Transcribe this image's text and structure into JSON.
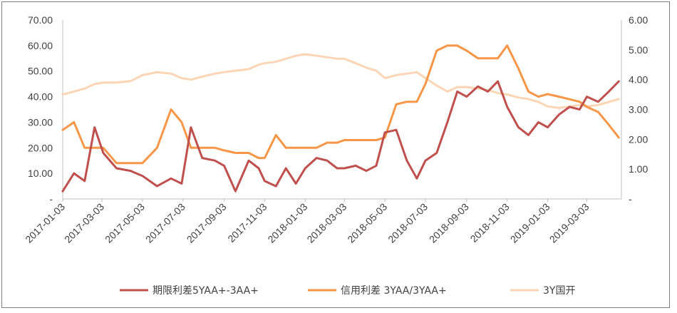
{
  "chart_data": {
    "type": "line",
    "x_ticks": [
      "2017-01-03",
      "2017-03-03",
      "2017-05-03",
      "2017-07-03",
      "2017-09-03",
      "2017-11-03",
      "2018-01-03",
      "2018-03-03",
      "2018-05-03",
      "2018-07-03",
      "2018-09-03",
      "2018-11-03",
      "2019-01-03",
      "2019-03-03"
    ],
    "y_left": {
      "ticks": [
        "-",
        "10.00",
        "20.00",
        "30.00",
        "40.00",
        "50.00",
        "60.00",
        "70.00"
      ],
      "ylim": [
        0,
        70
      ]
    },
    "y_right": {
      "ticks": [
        "-",
        "1.00",
        "2.00",
        "3.00",
        "4.00",
        "5.00",
        "6.00"
      ],
      "ylim": [
        0,
        6
      ]
    },
    "grid": false,
    "legend_position": "bottom",
    "series": [
      {
        "name": "期限利差5YAA+-3AA+",
        "axis": "left",
        "color": "#c0504d",
        "x": [
          "2017-01-03",
          "2017-01-20",
          "2017-02-05",
          "2017-02-20",
          "2017-03-05",
          "2017-03-25",
          "2017-04-15",
          "2017-05-03",
          "2017-05-25",
          "2017-06-15",
          "2017-07-01",
          "2017-07-15",
          "2017-08-01",
          "2017-08-20",
          "2017-09-03",
          "2017-09-20",
          "2017-10-10",
          "2017-10-25",
          "2017-11-03",
          "2017-11-20",
          "2017-12-05",
          "2017-12-20",
          "2018-01-03",
          "2018-01-20",
          "2018-02-05",
          "2018-02-20",
          "2018-03-03",
          "2018-03-20",
          "2018-04-05",
          "2018-04-20",
          "2018-05-03",
          "2018-05-20",
          "2018-06-05",
          "2018-06-20",
          "2018-07-03",
          "2018-07-20",
          "2018-08-05",
          "2018-08-20",
          "2018-09-03",
          "2018-09-20",
          "2018-10-05",
          "2018-10-20",
          "2018-11-03",
          "2018-11-20",
          "2018-12-05",
          "2018-12-20",
          "2019-01-03",
          "2019-01-20",
          "2019-02-05",
          "2019-02-20",
          "2019-03-03",
          "2019-03-20",
          "2019-04-05",
          "2019-04-20"
        ],
        "values": [
          3,
          10,
          7,
          28,
          18,
          12,
          11,
          9,
          5,
          8,
          6,
          28,
          16,
          15,
          13,
          3,
          15,
          12,
          7,
          5,
          12,
          6,
          12,
          16,
          15,
          12,
          12,
          13,
          11,
          13,
          26,
          27,
          15,
          8,
          15,
          18,
          30,
          42,
          40,
          44,
          42,
          46,
          36,
          28,
          25,
          30,
          28,
          33,
          36,
          35,
          40,
          38,
          42,
          46
        ]
      },
      {
        "name": "信用利差 3YAA/3YAA+",
        "axis": "left",
        "color": "#f79646",
        "x": [
          "2017-01-03",
          "2017-01-20",
          "2017-02-05",
          "2017-02-20",
          "2017-03-05",
          "2017-03-25",
          "2017-04-15",
          "2017-05-03",
          "2017-05-25",
          "2017-06-15",
          "2017-07-01",
          "2017-07-15",
          "2017-08-01",
          "2017-08-20",
          "2017-09-03",
          "2017-09-20",
          "2017-10-10",
          "2017-10-25",
          "2017-11-03",
          "2017-11-20",
          "2017-12-05",
          "2017-12-20",
          "2018-01-03",
          "2018-01-20",
          "2018-02-05",
          "2018-02-20",
          "2018-03-03",
          "2018-03-20",
          "2018-04-05",
          "2018-04-20",
          "2018-05-03",
          "2018-05-20",
          "2018-06-05",
          "2018-06-20",
          "2018-07-03",
          "2018-07-20",
          "2018-08-05",
          "2018-08-20",
          "2018-09-03",
          "2018-09-20",
          "2018-10-05",
          "2018-10-20",
          "2018-11-03",
          "2018-11-20",
          "2018-12-05",
          "2018-12-20",
          "2019-01-03",
          "2019-01-20",
          "2019-02-05",
          "2019-02-20",
          "2019-03-03",
          "2019-03-20",
          "2019-04-05",
          "2019-04-20"
        ],
        "values": [
          27,
          30,
          20,
          20,
          20,
          14,
          14,
          14,
          20,
          35,
          30,
          20,
          20,
          20,
          19,
          18,
          18,
          16,
          16,
          25,
          20,
          20,
          20,
          20,
          22,
          22,
          23,
          23,
          23,
          23,
          24,
          37,
          38,
          38,
          45,
          58,
          60,
          60,
          58,
          55,
          55,
          55,
          60,
          51,
          42,
          40,
          41,
          40,
          39,
          38,
          36,
          34,
          29,
          24
        ]
      },
      {
        "name": "3Y国开",
        "axis": "right",
        "color": "#fcd5b4",
        "x": [
          "2017-01-03",
          "2017-01-20",
          "2017-02-05",
          "2017-02-20",
          "2017-03-05",
          "2017-03-25",
          "2017-04-15",
          "2017-05-03",
          "2017-05-25",
          "2017-06-15",
          "2017-07-01",
          "2017-07-15",
          "2017-08-01",
          "2017-08-20",
          "2017-09-03",
          "2017-09-20",
          "2017-10-10",
          "2017-10-25",
          "2017-11-03",
          "2017-11-20",
          "2017-12-05",
          "2017-12-20",
          "2018-01-03",
          "2018-01-20",
          "2018-02-05",
          "2018-02-20",
          "2018-03-03",
          "2018-03-20",
          "2018-04-05",
          "2018-04-20",
          "2018-05-03",
          "2018-05-20",
          "2018-06-05",
          "2018-06-20",
          "2018-07-03",
          "2018-07-20",
          "2018-08-05",
          "2018-08-20",
          "2018-09-03",
          "2018-09-20",
          "2018-10-05",
          "2018-10-20",
          "2018-11-03",
          "2018-11-20",
          "2018-12-05",
          "2018-12-20",
          "2019-01-03",
          "2019-01-20",
          "2019-02-05",
          "2019-02-20",
          "2019-03-03",
          "2019-03-20",
          "2019-04-05",
          "2019-04-20"
        ],
        "values": [
          3.5,
          3.6,
          3.7,
          3.85,
          3.9,
          3.9,
          3.95,
          4.15,
          4.25,
          4.2,
          4.05,
          4.0,
          4.1,
          4.2,
          4.25,
          4.3,
          4.35,
          4.5,
          4.55,
          4.6,
          4.7,
          4.8,
          4.85,
          4.8,
          4.75,
          4.7,
          4.7,
          4.55,
          4.4,
          4.3,
          4.05,
          4.15,
          4.2,
          4.25,
          4.05,
          3.8,
          3.6,
          3.75,
          3.75,
          3.7,
          3.65,
          3.55,
          3.5,
          3.4,
          3.35,
          3.25,
          3.1,
          3.05,
          3.1,
          3.15,
          3.1,
          3.15,
          3.25,
          3.35
        ]
      }
    ]
  }
}
